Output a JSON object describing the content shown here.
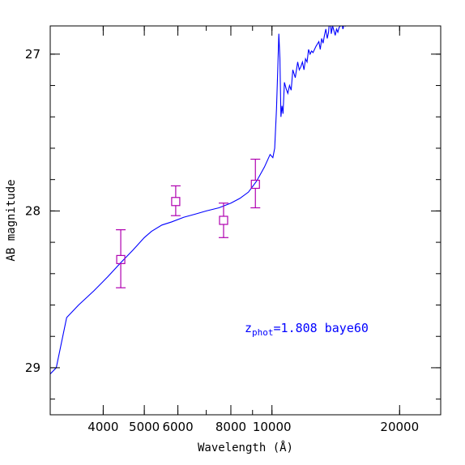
{
  "chart_data": {
    "type": "line",
    "xlabel": "Wavelength (Å)",
    "ylabel": "AB magnitude",
    "xscale": "log",
    "xlim": [
      3000,
      25000
    ],
    "ylim": [
      29.3,
      26.82
    ],
    "x_ticks": [
      {
        "value": 4000,
        "label": "4000"
      },
      {
        "value": 5000,
        "label": "5000"
      },
      {
        "value": 6000,
        "label": "6000"
      },
      {
        "value": 8000,
        "label": "8000"
      },
      {
        "value": 10000,
        "label": "10000"
      },
      {
        "value": 20000,
        "label": "20000"
      }
    ],
    "y_ticks": [
      {
        "value": 27,
        "label": "27"
      },
      {
        "value": 28,
        "label": "28"
      },
      {
        "value": 29,
        "label": "29"
      }
    ],
    "annotation": {
      "z_symbol": "z",
      "z_subscript": "phot",
      "text": "=1.808 baye60"
    },
    "colors": {
      "model": "#0000ff",
      "photometry": "#b000b0",
      "axes": "#000000"
    },
    "grid": false,
    "series": [
      {
        "kind": "line",
        "x": [
          3000,
          3100,
          3280,
          3500,
          3800,
          4100,
          4400,
          4700,
          5000,
          5200,
          5500,
          5800,
          6200,
          6600,
          7000,
          7500,
          8000,
          8400,
          8800,
          9200,
          9600,
          9900,
          10050,
          10150,
          10250,
          10320,
          10380,
          10440,
          10500,
          10560,
          10620,
          10700,
          10800,
          10900,
          11000,
          11100,
          11200,
          11350,
          11500,
          11600,
          11700,
          11800,
          11900,
          12000,
          12100,
          12200,
          12300,
          12400,
          12500,
          12700,
          12900,
          13000,
          13100,
          13200,
          13300,
          13400,
          13500,
          13600,
          13700,
          13800,
          13900,
          14000,
          14100,
          14200,
          14300,
          14400,
          14500,
          14600,
          14700,
          14800,
          14900,
          15000
        ],
        "y": [
          29.04,
          29.0,
          28.68,
          28.6,
          28.51,
          28.42,
          28.33,
          28.25,
          28.17,
          28.13,
          28.09,
          28.07,
          28.04,
          28.02,
          28.0,
          27.98,
          27.95,
          27.92,
          27.88,
          27.81,
          27.72,
          27.64,
          27.66,
          27.6,
          27.35,
          27.1,
          26.87,
          27.02,
          27.4,
          27.33,
          27.38,
          27.18,
          27.22,
          27.25,
          27.2,
          27.23,
          27.1,
          27.15,
          27.05,
          27.1,
          27.08,
          27.05,
          27.1,
          27.03,
          27.05,
          26.97,
          27.0,
          26.98,
          26.99,
          26.95,
          26.92,
          26.97,
          26.9,
          26.93,
          26.88,
          26.84,
          26.9,
          26.86,
          26.75,
          26.87,
          26.82,
          26.85,
          26.88,
          26.84,
          26.86,
          26.83,
          26.82,
          26.8,
          26.84,
          26.81,
          26.82,
          26.8
        ]
      },
      {
        "kind": "errorbar",
        "x": [
          4400,
          5930,
          7690,
          9140
        ],
        "y": [
          28.31,
          27.94,
          28.06,
          27.83
        ],
        "yerr_plus": [
          0.18,
          0.09,
          0.11,
          0.15
        ],
        "yerr_minus": [
          0.19,
          0.1,
          0.11,
          0.16
        ]
      }
    ]
  }
}
